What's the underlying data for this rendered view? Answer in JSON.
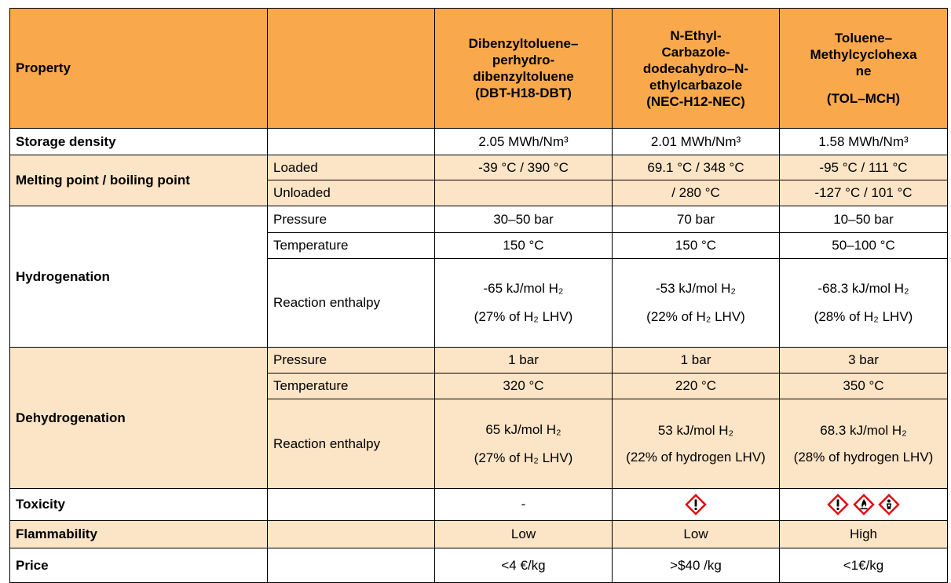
{
  "header": {
    "property": "Property",
    "columns": [
      [
        "Dibenzyltoluene–",
        "perhydro-",
        "dibenzyltoluene",
        "(DBT-H18-DBT)"
      ],
      [
        "N-Ethyl-",
        "Carbazole-",
        "dodecahydro–N-",
        "ethylcarbazole",
        "(NEC-H12-NEC)"
      ],
      [
        "Toluene–",
        "Methylcyclohexa",
        "ne",
        "(TOL–MCH)"
      ]
    ]
  },
  "rows": {
    "storage": {
      "property": "Storage density",
      "values": [
        "2.05 MWh/Nm³",
        "2.01 MWh/Nm³",
        "1.58 MWh/Nm³"
      ]
    },
    "melting": {
      "property": "Melting point / boiling point",
      "loaded": {
        "label": "Loaded",
        "values": [
          "-39 °C / 390 °C",
          "69.1 °C / 348 °C",
          "-95 °C / 111 °C"
        ]
      },
      "unloaded": {
        "label": "Unloaded",
        "values": [
          null,
          "/ 280 °C",
          "-127 °C / 101 °C"
        ]
      }
    },
    "hydrogenation": {
      "property": "Hydrogenation",
      "pressure": {
        "label": "Pressure",
        "values": [
          "30–50 bar",
          "70 bar",
          "10–50 bar"
        ]
      },
      "temperature": {
        "label": "Temperature",
        "values": [
          "150 °C",
          "150 °C",
          "50–100 °C"
        ]
      },
      "enthalpy": {
        "label": "Reaction enthalpy",
        "values": [
          [
            "-65 kJ/mol H₂",
            "(27% of H₂ LHV)"
          ],
          [
            "-53 kJ/mol H₂",
            "(22% of H₂ LHV)"
          ],
          [
            "-68.3 kJ/mol H₂",
            "(28% of H₂ LHV)"
          ]
        ]
      }
    },
    "dehydrogenation": {
      "property": "Dehydrogenation",
      "pressure": {
        "label": "Pressure",
        "values": [
          "1 bar",
          "1 bar",
          "3 bar"
        ]
      },
      "temperature": {
        "label": "Temperature",
        "values": [
          "320 °C",
          "220 °C",
          "350 °C"
        ]
      },
      "enthalpy": {
        "label": "Reaction enthalpy",
        "values": [
          [
            "65 kJ/mol H₂",
            "(27% of H₂ LHV)"
          ],
          [
            "53 kJ/mol H₂",
            "(22% of hydrogen LHV)"
          ],
          [
            "68.3 kJ/mol H₂",
            "(28% of hydrogen LHV)"
          ]
        ]
      }
    },
    "toxicity": {
      "property": "Toxicity",
      "dbt": "-"
    },
    "flammability": {
      "property": "Flammability",
      "values": [
        "Low",
        "Low",
        "High"
      ]
    },
    "price": {
      "property": "Price",
      "values": [
        "<4 €/kg",
        ">$40 /kg",
        "<1€/kg"
      ]
    }
  }
}
